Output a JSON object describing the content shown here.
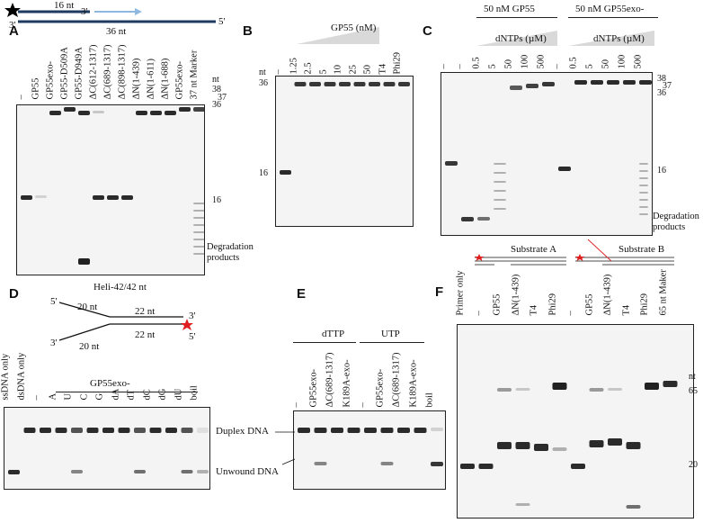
{
  "panels": [
    "A",
    "B",
    "C",
    "D",
    "E",
    "F"
  ],
  "panelA": {
    "schematic": {
      "top_len": "16 nt",
      "top_end": "3'",
      "bottom_left": "3'",
      "bottom_right": "5'",
      "bottom_len": "36 nt"
    },
    "lanes": [
      "–",
      "GP55",
      "GP55exo-",
      "GP55-D509A",
      "GP55-D949A",
      "ΔC(612-1317)",
      "ΔC(689-1317)",
      "ΔC(898-1317)",
      "ΔN(1-439)",
      "ΔN(1-611)",
      "ΔN(1-688)",
      "GP55exo-",
      "37 nt Marker"
    ],
    "size_unit": "nt",
    "sizes": [
      "38",
      "37",
      "36",
      "16"
    ],
    "degradation": [
      "Degradation",
      "products"
    ]
  },
  "panelB": {
    "gradient_label": "GP55 (nM)",
    "lanes": [
      "–",
      "1.25",
      "2.5",
      "5",
      "10",
      "25",
      "50",
      "T4",
      "Phi29"
    ],
    "size_unit": "nt",
    "sizes": [
      "36",
      "16"
    ]
  },
  "panelC": {
    "group1": "50 nM GP55",
    "group2": "50 nM GP55exo-",
    "gradient_label": "dNTPs (µM)",
    "lanes": [
      "–",
      "–",
      "0.5",
      "5",
      "50",
      "100",
      "500",
      "–",
      "0.5",
      "5",
      "50",
      "100",
      "500"
    ],
    "sizes": [
      "38",
      "37",
      "36",
      "16"
    ],
    "degradation": [
      "Degradation",
      "products"
    ]
  },
  "panelD": {
    "title": "Heli-42/42 nt",
    "schematic": {
      "top_left": "5'",
      "top_len1": "20 nt",
      "top_len2": "22 nt",
      "top_right": "3'",
      "bottom_left": "3'",
      "bottom_len1": "20 nt",
      "bottom_len2": "22 nt",
      "bottom_right": "5'"
    },
    "group": "GP55exo-",
    "lanes": [
      "ssDNA only",
      "dsDNA only",
      "–",
      "A",
      "U",
      "C",
      "G",
      "dA",
      "dT",
      "dC",
      "dG",
      "dU",
      "boil"
    ],
    "bands": [
      "Duplex DNA",
      "Unwound DNA"
    ]
  },
  "panelE": {
    "group1": "dTTP",
    "group2": "UTP",
    "lanes": [
      "–",
      "GP55exo-",
      "ΔC(689-1317)",
      "K189A-exo-",
      "–",
      "GP55exo-",
      "ΔC(689-1317)",
      "K189A-exo-",
      "boil"
    ]
  },
  "panelF": {
    "substrateA": "Substrate A",
    "substrateB": "Substrate B",
    "lanes": [
      "Primer only",
      "–",
      "GP55",
      "ΔN(1-439)",
      "T4",
      "Phi29",
      "–",
      "GP55",
      "ΔN(1-439)",
      "T4",
      "Phi29",
      "65 nt Maker"
    ],
    "size_unit": "nt",
    "sizes": [
      "65",
      "20"
    ]
  },
  "colors": {
    "accent_blue": "#5b9bd5",
    "dark_blue": "#1f3a5f",
    "star_red": "#e02020",
    "gel_bg": "#f4f4f4",
    "band": "#151515"
  }
}
